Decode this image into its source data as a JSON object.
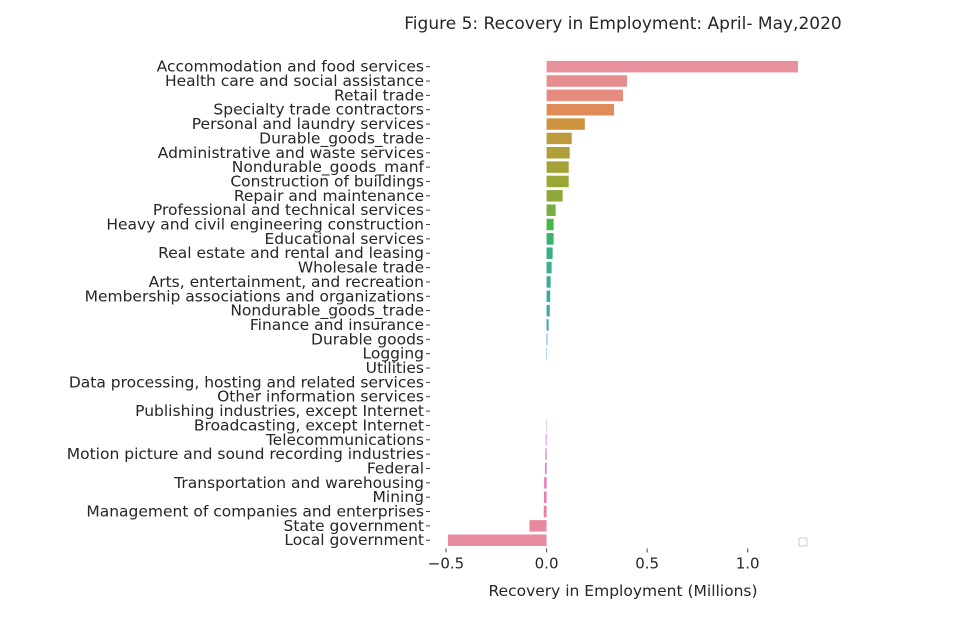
{
  "chart_data": {
    "type": "bar",
    "orientation": "horizontal",
    "title": "Figure 5: Recovery in Employment: April- May,2020",
    "xlabel": "Recovery in Employment (Millions)",
    "ylabel": "",
    "xlim": [
      -0.52,
      1.3
    ],
    "xticks": [
      {
        "value": -0.5,
        "label": "−0.5"
      },
      {
        "value": 0.0,
        "label": "0.0"
      },
      {
        "value": 0.5,
        "label": "0.5"
      },
      {
        "value": 1.0,
        "label": "1.0"
      }
    ],
    "grid": false,
    "legend": "bottom-right (empty)",
    "categories": [
      "Accommodation and food services",
      "Health care and social assistance",
      "Retail trade",
      "Specialty trade contractors",
      "Personal and laundry services",
      "Durable_goods_trade",
      "Administrative and waste services",
      "Nondurable_goods_manf",
      "Construction of buildings",
      "Repair and maintenance",
      "Professional and technical services",
      "Heavy and civil engineering construction",
      "Educational services",
      "Real estate and rental and leasing",
      "Wholesale trade",
      "Arts, entertainment, and recreation",
      "Membership associations and organizations",
      "Nondurable_goods_trade",
      "Finance and insurance",
      "Durable goods",
      "Logging",
      "Utilities",
      "Data processing, hosting and related services",
      "Other information services",
      "Publishing industries, except Internet",
      "Broadcasting, except Internet",
      "Telecommunications",
      "Motion picture and sound recording industries",
      "Federal",
      "Transportation and warehousing",
      "Mining",
      "Management of companies and enterprises",
      "State government",
      "Local government"
    ],
    "values": [
      1.25,
      0.4,
      0.38,
      0.335,
      0.19,
      0.125,
      0.115,
      0.11,
      0.11,
      0.08,
      0.045,
      0.035,
      0.035,
      0.03,
      0.025,
      0.02,
      0.018,
      0.016,
      0.01,
      0.004,
      0.002,
      0.0,
      0.0,
      0.0,
      0.0,
      -0.002,
      -0.004,
      -0.006,
      -0.008,
      -0.012,
      -0.013,
      -0.014,
      -0.085,
      -0.49
    ],
    "colors": [
      "#e8909b",
      "#e68d8d",
      "#e58c7e",
      "#df8c58",
      "#d0933f",
      "#bd9a3b",
      "#ae9f38",
      "#a5a237",
      "#9ca637",
      "#8fa939",
      "#73ae3e",
      "#48b44a",
      "#39b26f",
      "#36b080",
      "#37ae8b",
      "#37ab96",
      "#39aaa0",
      "#3aa8aa",
      "#3ba6b8",
      "#3ea3c5",
      "#48a0d0",
      "#5f9ad9",
      "#7c94e0",
      "#9a8ee3",
      "#ae87e2",
      "#c07fe0",
      "#cc7bdb",
      "#d77bd3",
      "#df79c8",
      "#e47bbd",
      "#e67dae",
      "#e880a5",
      "#e8899f",
      "#e88ba0"
    ]
  }
}
